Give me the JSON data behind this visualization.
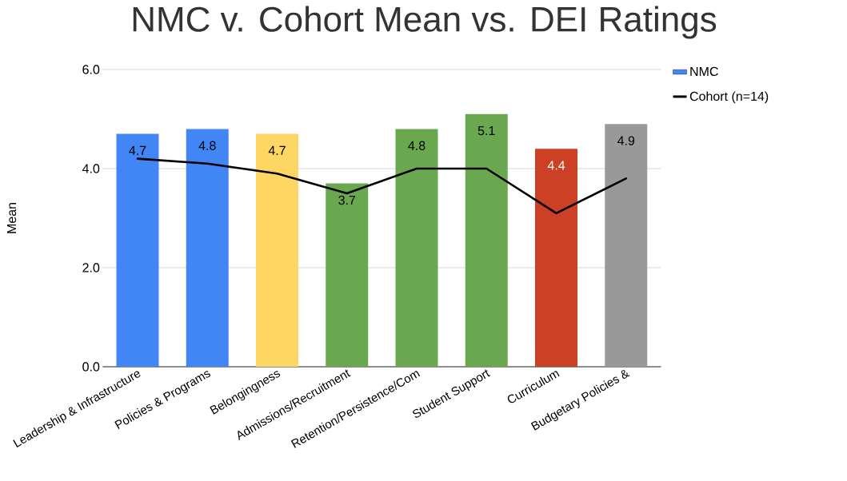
{
  "chart_data": {
    "type": "bar",
    "title": "NMC v. Cohort Mean vs. DEI Ratings",
    "ylabel": "Mean",
    "categories": [
      "Leadership & Infrastructure",
      "Policies & Programs",
      "Belongingness",
      "Admissions/Recruitment",
      "Retention/Persistence/Com",
      "Student Support",
      "Curriculum",
      "Budgetary Policies &"
    ],
    "series": [
      {
        "name": "NMC",
        "color": "#4285f4",
        "colors": [
          "#4285f4",
          "#4285f4",
          "#fdd663",
          "#6aa84f",
          "#6aa84f",
          "#6aa84f",
          "#cc4125",
          "#999999"
        ],
        "values": [
          4.7,
          4.8,
          4.7,
          3.7,
          4.8,
          5.1,
          4.4,
          4.9
        ],
        "value_labels": [
          "4.7",
          "4.8",
          "4.7",
          "3.7",
          "4.8",
          "5.1",
          "4.4",
          "4.9"
        ]
      },
      {
        "name": "Cohort (n=14)",
        "type": "line",
        "color": "#000000",
        "values": [
          4.2,
          4.1,
          3.9,
          3.5,
          4.0,
          4.0,
          3.1,
          3.8
        ]
      }
    ],
    "ylim": [
      0,
      6
    ],
    "yticks": [
      {
        "value": 0,
        "label": "0.0"
      },
      {
        "value": 2,
        "label": "2.0"
      },
      {
        "value": 4,
        "label": "4.0"
      },
      {
        "value": 6,
        "label": "6.0"
      }
    ],
    "grid": "y",
    "legend": "top right"
  }
}
